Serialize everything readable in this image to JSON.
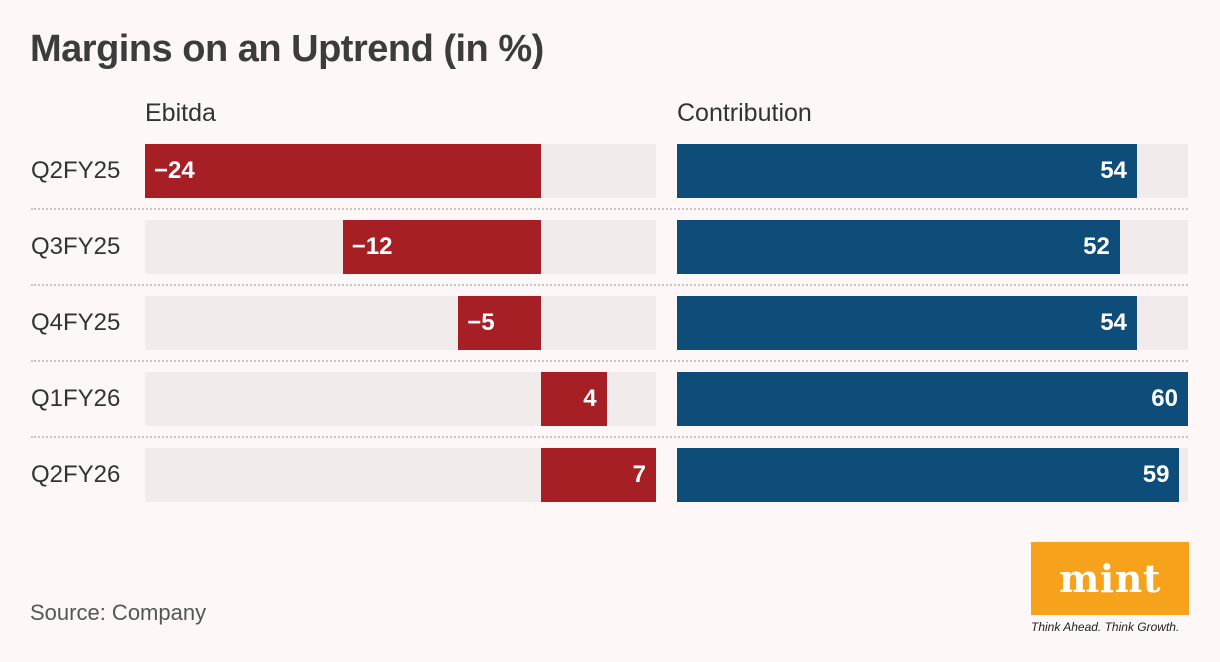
{
  "title": "Margins on an Uptrend (in %)",
  "source": "Source: Company",
  "logo": {
    "name": "mint",
    "tagline": "Think Ahead. Think Growth."
  },
  "colors": {
    "ebitda": "#a51f24",
    "contribution": "#0e4c7a",
    "track": "#f1eceb",
    "logo": "#f7a21b"
  },
  "chart_data": {
    "type": "bar",
    "orientation": "horizontal",
    "title": "Margins on an Uptrend (in %)",
    "categories": [
      "Q2FY25",
      "Q3FY25",
      "Q4FY25",
      "Q1FY26",
      "Q2FY26"
    ],
    "series": [
      {
        "name": "Ebitda",
        "values": [
          -24,
          -12,
          -5,
          4,
          7
        ],
        "xlim": [
          -24,
          7
        ]
      },
      {
        "name": "Contribution",
        "values": [
          54,
          52,
          54,
          60,
          59
        ],
        "xlim": [
          0,
          60
        ]
      }
    ],
    "value_labels": {
      "ebitda": [
        "−24",
        "−12",
        "−5",
        "4",
        "7"
      ],
      "contribution": [
        "54",
        "52",
        "54",
        "60",
        "59"
      ]
    },
    "grid": false,
    "legend": "none"
  }
}
